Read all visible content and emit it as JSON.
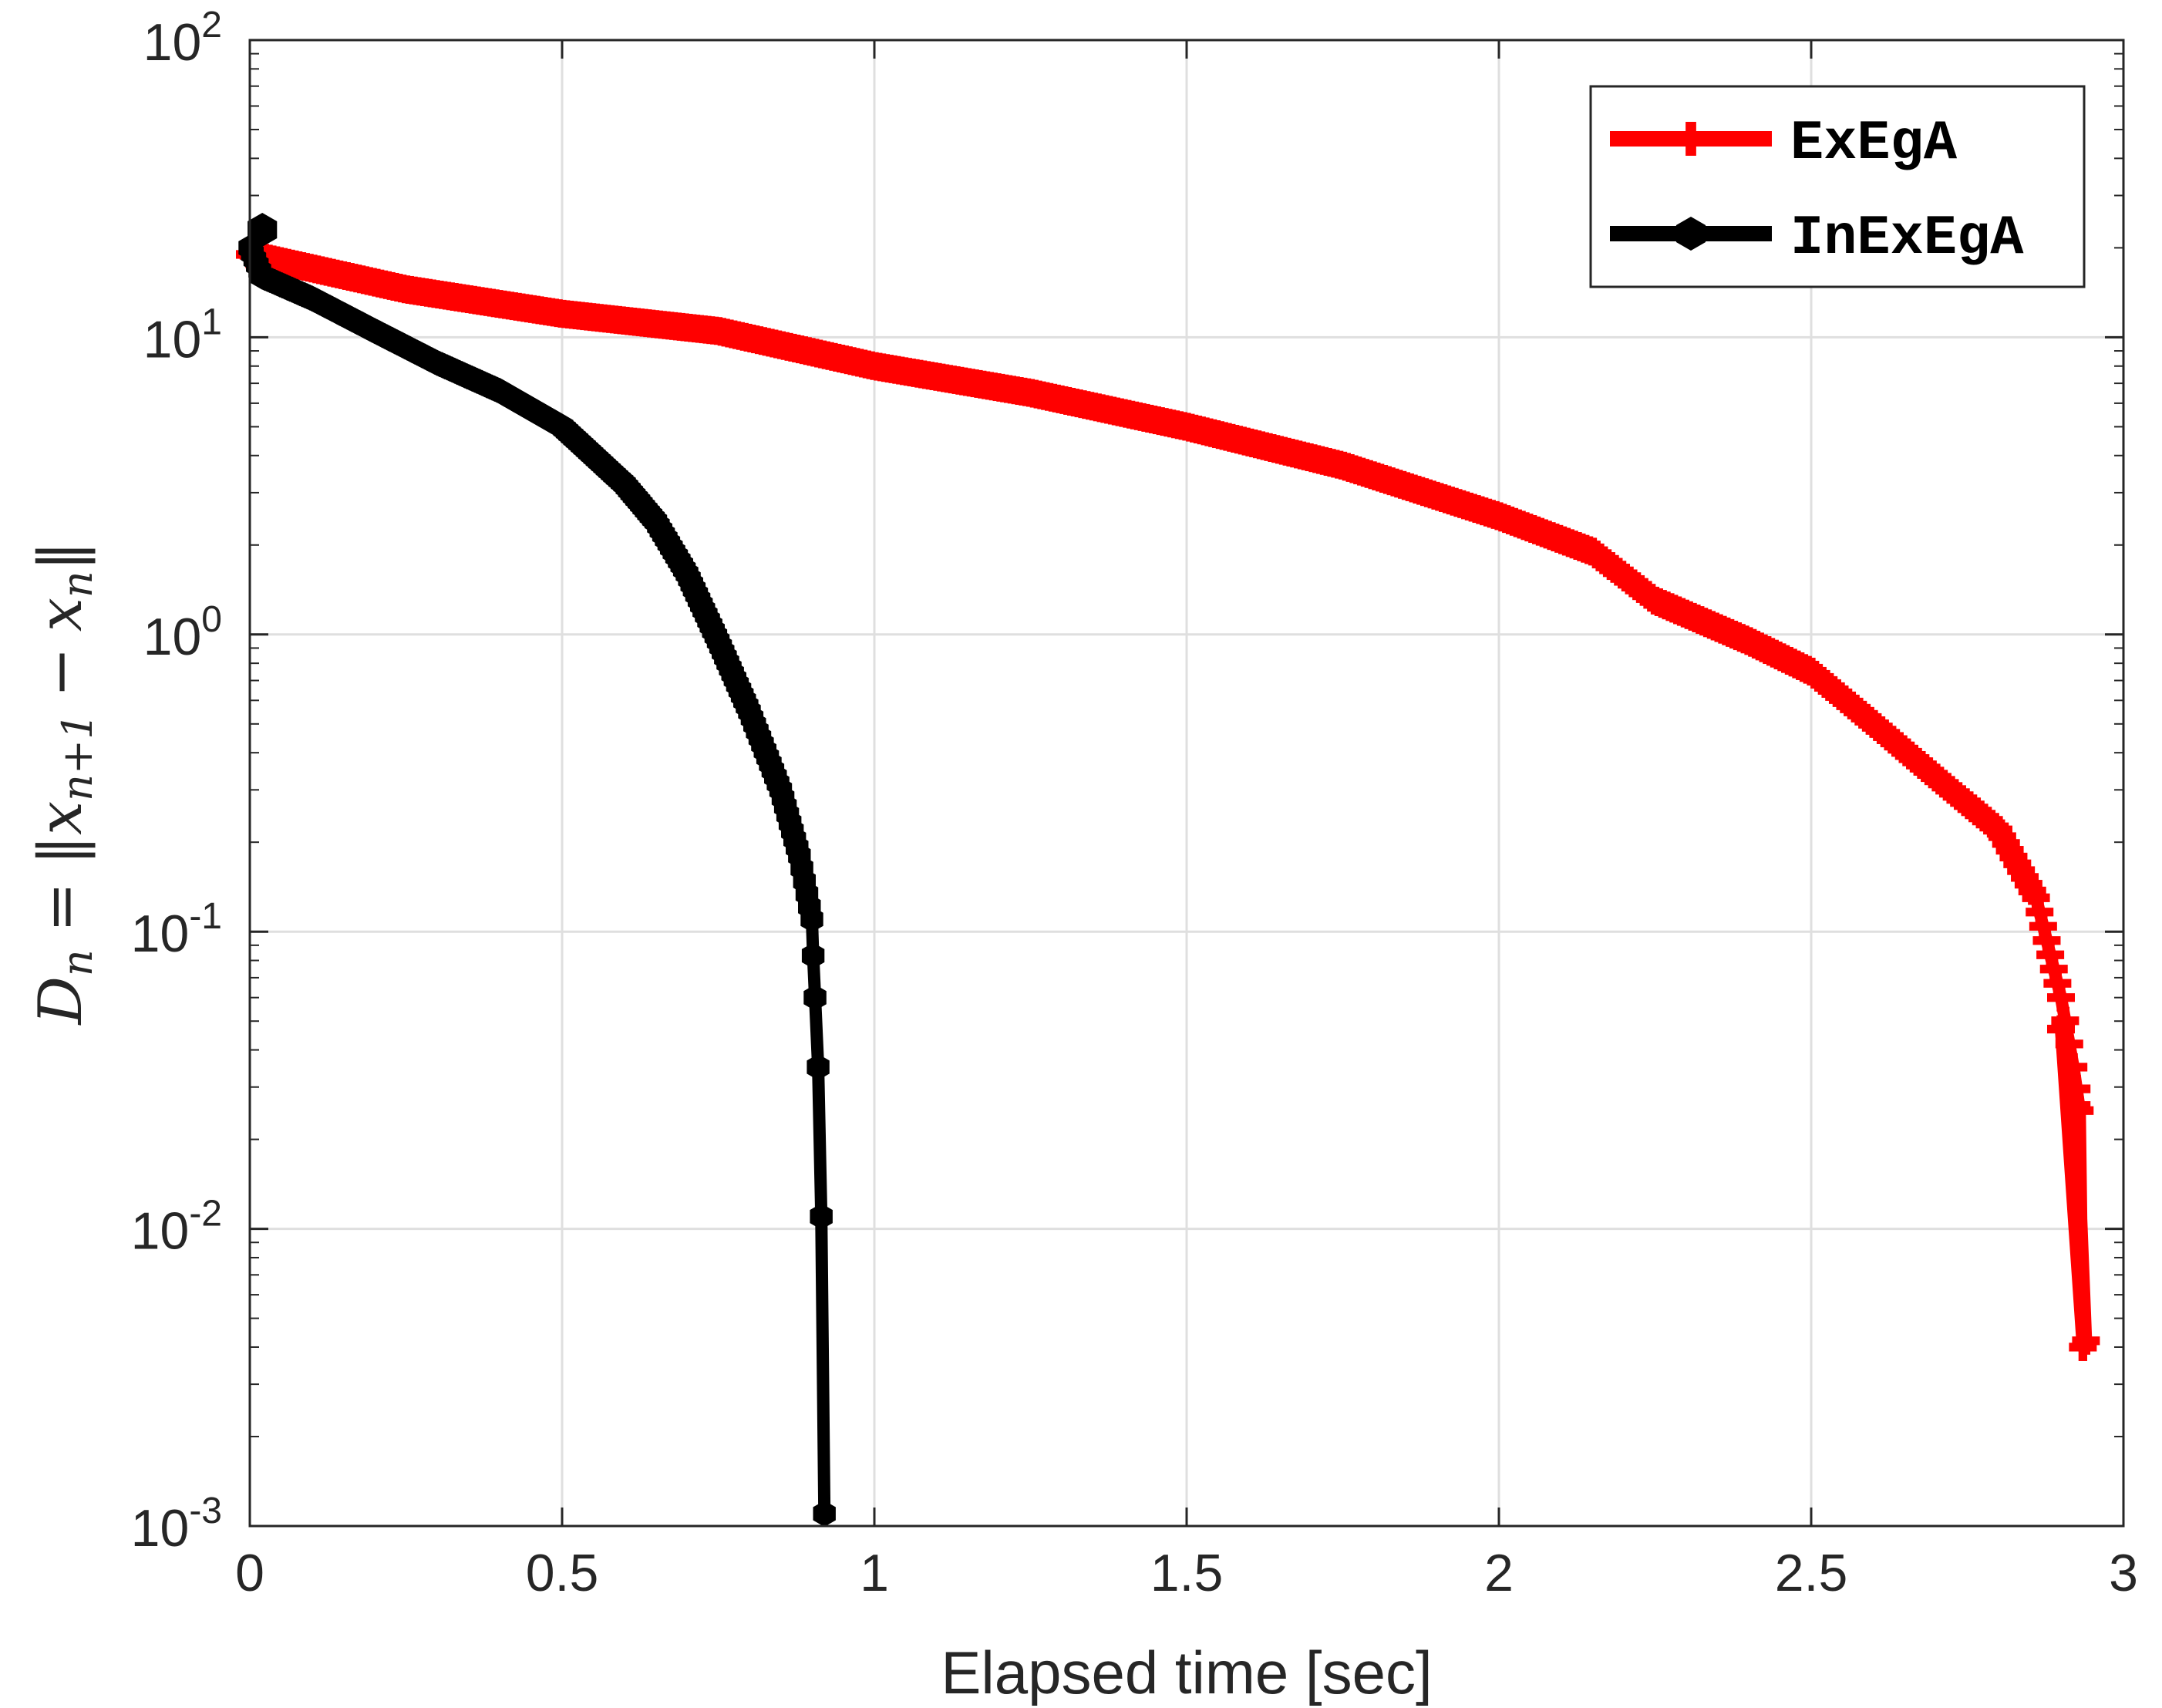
{
  "chart_data": {
    "type": "line",
    "title": "",
    "xlabel": "Elapsed time [sec]",
    "ylabel": {
      "D": "D",
      "n": "n",
      "eq": "=",
      "open": "‖",
      "x": "x",
      "sub1": "n+1",
      "minus": "−",
      "x2": "x",
      "sub2": "n",
      "close": "‖"
    },
    "xlim": [
      0,
      3
    ],
    "ylim": [
      0.001,
      100
    ],
    "yscale": "log",
    "grid": true,
    "legend_position": "top-right",
    "x_ticks": [
      {
        "value": 0,
        "label": "0"
      },
      {
        "value": 0.5,
        "label": "0.5"
      },
      {
        "value": 1,
        "label": "1"
      },
      {
        "value": 1.5,
        "label": "1.5"
      },
      {
        "value": 2,
        "label": "2"
      },
      {
        "value": 2.5,
        "label": "2.5"
      },
      {
        "value": 3,
        "label": "3"
      }
    ],
    "y_ticks": [
      {
        "value": 100,
        "base": "10",
        "exp": "2"
      },
      {
        "value": 10,
        "base": "10",
        "exp": "1"
      },
      {
        "value": 1,
        "base": "10",
        "exp": "0"
      },
      {
        "value": 0.1,
        "base": "10",
        "exp": "-1"
      },
      {
        "value": 0.01,
        "base": "10",
        "exp": "-2"
      },
      {
        "value": 0.001,
        "base": "10",
        "exp": "-3"
      }
    ],
    "series": [
      {
        "name": "ExEgA",
        "color": "#ff0000",
        "marker": "plus",
        "anchors": [
          [
            0.0,
            19.0
          ],
          [
            0.25,
            14.5
          ],
          [
            0.5,
            12.0
          ],
          [
            0.75,
            10.5
          ],
          [
            1.0,
            8.0
          ],
          [
            1.25,
            6.5
          ],
          [
            1.5,
            5.0
          ],
          [
            1.75,
            3.7
          ],
          [
            2.0,
            2.5
          ],
          [
            2.15,
            1.9
          ],
          [
            2.25,
            1.3
          ],
          [
            2.4,
            0.95
          ],
          [
            2.5,
            0.75
          ],
          [
            2.6,
            0.5
          ],
          [
            2.7,
            0.33
          ],
          [
            2.8,
            0.22
          ],
          [
            2.86,
            0.13
          ],
          [
            2.9,
            0.06
          ],
          [
            2.92,
            0.035
          ],
          [
            2.93,
            0.025
          ],
          [
            2.935,
            0.004
          ]
        ],
        "tail": [
          [
            2.9,
            0.047
          ],
          [
            2.925,
            0.026
          ],
          [
            2.94,
            0.0042
          ]
        ]
      },
      {
        "name": "InExEgA",
        "color": "#000000",
        "marker": "hexagon",
        "anchors": [
          [
            0.0,
            20.0
          ],
          [
            0.02,
            16.0
          ],
          [
            0.1,
            13.5
          ],
          [
            0.2,
            10.5
          ],
          [
            0.3,
            8.2
          ],
          [
            0.4,
            6.6
          ],
          [
            0.5,
            5.0
          ],
          [
            0.6,
            3.2
          ],
          [
            0.65,
            2.4
          ],
          [
            0.7,
            1.6
          ],
          [
            0.75,
            0.95
          ],
          [
            0.8,
            0.55
          ],
          [
            0.85,
            0.3
          ],
          [
            0.88,
            0.18
          ],
          [
            0.9,
            0.11
          ]
        ],
        "tail": [
          [
            0.902,
            0.083
          ],
          [
            0.905,
            0.06
          ],
          [
            0.91,
            0.035
          ],
          [
            0.915,
            0.011
          ],
          [
            0.92,
            0.0011
          ]
        ],
        "start_point": [
          0.02,
          23.0
        ]
      }
    ]
  }
}
